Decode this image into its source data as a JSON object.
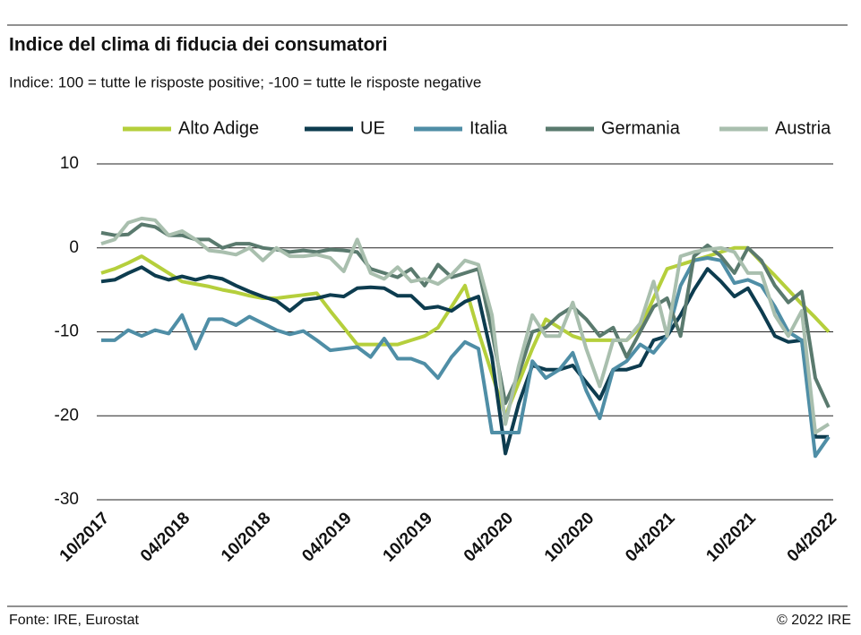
{
  "title": "Indice del clima di fiducia dei consumatori",
  "subtitle": "Indice: 100 = tutte le risposte positive; -100 = tutte le risposte negative",
  "source": "Fonte: IRE, Eurostat",
  "copyright": "© 2022 IRE",
  "chart_data": {
    "type": "line",
    "categories": [
      "10/2017",
      null,
      null,
      null,
      null,
      null,
      "04/2018",
      null,
      null,
      null,
      null,
      null,
      "10/2018",
      null,
      null,
      null,
      null,
      null,
      "04/2019",
      null,
      null,
      null,
      null,
      null,
      "10/2019",
      null,
      null,
      null,
      null,
      null,
      "04/2020",
      null,
      null,
      null,
      null,
      null,
      "10/2020",
      null,
      null,
      null,
      null,
      null,
      "04/2021",
      null,
      null,
      null,
      null,
      null,
      "10/2021",
      null,
      null,
      null,
      null,
      null,
      "04/2022"
    ],
    "ylim": [
      -30,
      10
    ],
    "yticks": [
      -30,
      -20,
      -10,
      0,
      10
    ],
    "grid": true,
    "legend": "top",
    "series": [
      {
        "name": "Alto Adige",
        "color": "#b5cf3c",
        "values": [
          -3,
          -2.5,
          -1.8,
          -1,
          -2,
          -3,
          -4,
          -4.3,
          -4.6,
          -5,
          -5.3,
          -5.7,
          -6,
          -6,
          -5.8,
          -5.6,
          -5.4,
          -7.5,
          -9.5,
          -11.5,
          -11.5,
          -11.5,
          -11.5,
          -11,
          -10.5,
          -9.5,
          -7,
          -4.5,
          -10,
          -15,
          -20,
          -16,
          -12,
          -8.5,
          -9.5,
          -10.5,
          -11,
          -11,
          -11,
          -11,
          -9.5,
          -6,
          -2.5,
          -2,
          -1.5,
          -1,
          -0.5,
          0,
          0,
          -1.7,
          -3.3,
          -5,
          -6.7,
          -8.3,
          -10
        ]
      },
      {
        "name": "UE",
        "color": "#0d3c4f",
        "values": [
          -4,
          -3.8,
          -3,
          -2.3,
          -3.3,
          -3.8,
          -3.4,
          -3.8,
          -3.4,
          -3.7,
          -4.5,
          -5.2,
          -5.8,
          -6.3,
          -7.5,
          -6.2,
          -6,
          -5.6,
          -5.8,
          -4.8,
          -4.7,
          -4.8,
          -5.7,
          -5.7,
          -7.2,
          -7,
          -7.5,
          -6.4,
          -5.8,
          -13,
          -24.5,
          -18.5,
          -14,
          -14.5,
          -14.5,
          -14,
          -16,
          -18,
          -14.5,
          -14.5,
          -14,
          -11,
          -10.5,
          -8,
          -5,
          -2.5,
          -4,
          -5.8,
          -4.8,
          -7.5,
          -10.5,
          -11.2,
          -11,
          -22.5,
          -22.5
        ]
      },
      {
        "name": "Italia",
        "color": "#4f8ea6",
        "values": [
          -11,
          -11,
          -9.8,
          -10.5,
          -9.8,
          -10.2,
          -8,
          -12,
          -8.5,
          -8.5,
          -9.2,
          -8.2,
          -9,
          -9.8,
          -10.3,
          -9.9,
          -11,
          -12.2,
          -12,
          -11.8,
          -13,
          -10.8,
          -13.2,
          -13.2,
          -13.8,
          -15.5,
          -13,
          -11.2,
          -12,
          -22,
          -22,
          -22,
          -13.5,
          -15.5,
          -14.5,
          -12.5,
          -17,
          -20.3,
          -14.5,
          -13.5,
          -11.5,
          -12.5,
          -10.5,
          -4.5,
          -1.5,
          -1.2,
          -1.5,
          -4.2,
          -3.8,
          -4.5,
          -7,
          -10,
          -11,
          -24.8,
          -22.5
        ]
      },
      {
        "name": "Germania",
        "color": "#5a7a6e",
        "values": [
          1.8,
          1.5,
          1.6,
          2.8,
          2.5,
          1.5,
          1.5,
          1,
          1,
          0,
          0.5,
          0.5,
          0,
          -0.2,
          -0.5,
          -0.3,
          -0.5,
          -0.2,
          -0.3,
          -0.5,
          -2.5,
          -3,
          -3.5,
          -2.5,
          -4.5,
          -2,
          -3.5,
          -3,
          -2.5,
          -10,
          -18.5,
          -15,
          -10,
          -9.5,
          -8,
          -7,
          -8.5,
          -10.5,
          -9.5,
          -13,
          -10,
          -7,
          -6,
          -10.5,
          -1,
          0.3,
          -1,
          -3,
          0,
          -1.5,
          -4.5,
          -6.5,
          -5.2,
          -15.5,
          -19
        ]
      },
      {
        "name": "Austria",
        "color": "#a9bfae",
        "values": [
          0.5,
          1,
          3,
          3.5,
          3.3,
          1.5,
          2,
          1,
          -0.3,
          -0.5,
          -0.8,
          0,
          -1.5,
          0,
          -1,
          -1,
          -0.8,
          -1.2,
          -2.8,
          1,
          -3,
          -3.7,
          -2.3,
          -4,
          -3.7,
          -4.3,
          -3.2,
          -1.5,
          -2,
          -8,
          -21,
          -14,
          -8,
          -10.5,
          -10.5,
          -6.5,
          -12,
          -16.5,
          -11,
          -11,
          -9,
          -4,
          -10.5,
          -1,
          -0.5,
          -0.2,
          0,
          -0.5,
          -3,
          -3,
          -8,
          -10.5,
          -7.5,
          -22,
          -21
        ]
      }
    ]
  }
}
